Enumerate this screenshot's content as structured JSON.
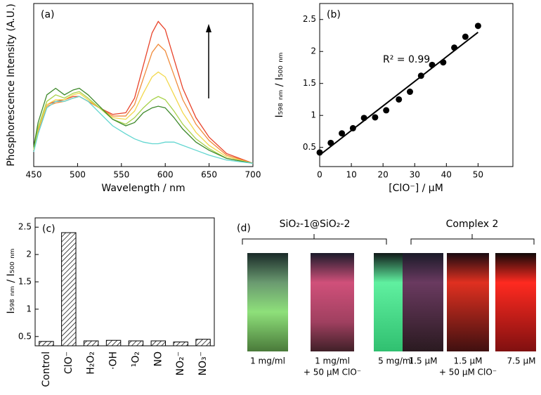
{
  "chart_data": [
    {
      "type": "line",
      "panel_label": "(a)",
      "x_label": "Wavelength / nm",
      "y_label": "Phosphorescence Intensity (A.U.)",
      "x": [
        450,
        455,
        465,
        475,
        485,
        495,
        502,
        512,
        525,
        540,
        555,
        565,
        575,
        585,
        592,
        600,
        610,
        620,
        635,
        650,
        670,
        700
      ],
      "xlim": [
        450,
        700
      ],
      "xticks": [
        450,
        500,
        550,
        600,
        650,
        700
      ],
      "ylim": [
        0,
        1
      ],
      "series": [
        {
          "color": "#e8432a",
          "values": [
            0.1,
            0.22,
            0.38,
            0.4,
            0.41,
            0.43,
            0.43,
            0.4,
            0.36,
            0.32,
            0.33,
            0.42,
            0.62,
            0.82,
            0.89,
            0.84,
            0.66,
            0.48,
            0.3,
            0.18,
            0.08,
            0.02
          ]
        },
        {
          "color": "#f08c3c",
          "values": [
            0.1,
            0.22,
            0.37,
            0.39,
            0.4,
            0.42,
            0.43,
            0.4,
            0.36,
            0.31,
            0.31,
            0.38,
            0.54,
            0.7,
            0.75,
            0.71,
            0.56,
            0.41,
            0.26,
            0.16,
            0.07,
            0.02
          ]
        },
        {
          "color": "#f2d84c",
          "values": [
            0.1,
            0.23,
            0.38,
            0.41,
            0.41,
            0.44,
            0.45,
            0.41,
            0.36,
            0.3,
            0.29,
            0.34,
            0.45,
            0.55,
            0.58,
            0.55,
            0.44,
            0.33,
            0.21,
            0.13,
            0.06,
            0.02
          ]
        },
        {
          "color": "#a8d24a",
          "values": [
            0.11,
            0.24,
            0.4,
            0.44,
            0.42,
            0.45,
            0.46,
            0.42,
            0.36,
            0.29,
            0.26,
            0.3,
            0.36,
            0.41,
            0.43,
            0.41,
            0.34,
            0.26,
            0.17,
            0.11,
            0.05,
            0.02
          ]
        },
        {
          "color": "#3f8a2c",
          "values": [
            0.12,
            0.27,
            0.44,
            0.48,
            0.44,
            0.47,
            0.48,
            0.44,
            0.37,
            0.29,
            0.25,
            0.27,
            0.33,
            0.36,
            0.37,
            0.36,
            0.3,
            0.23,
            0.15,
            0.1,
            0.05,
            0.02
          ]
        },
        {
          "color": "#62d6d0",
          "values": [
            0.09,
            0.2,
            0.36,
            0.4,
            0.4,
            0.42,
            0.43,
            0.4,
            0.33,
            0.25,
            0.2,
            0.17,
            0.15,
            0.14,
            0.14,
            0.15,
            0.15,
            0.13,
            0.1,
            0.07,
            0.04,
            0.02
          ]
        }
      ]
    },
    {
      "type": "scatter",
      "panel_label": "(b)",
      "x_label": "[ClO⁻] / μM",
      "y_label": "I₅₉₈ ₙₘ / I₅₀₀ ₙₘ",
      "annotation": "R² = 0.99",
      "x": [
        0,
        3.5,
        7,
        10.5,
        14,
        17.5,
        21,
        25,
        28.5,
        32,
        35.5,
        39,
        42.5,
        46,
        50
      ],
      "values": [
        0.42,
        0.57,
        0.72,
        0.8,
        0.96,
        0.97,
        1.08,
        1.25,
        1.37,
        1.62,
        1.79,
        1.83,
        2.06,
        2.23,
        2.4
      ],
      "fit": {
        "x": [
          0,
          50
        ],
        "y": [
          0.38,
          2.3
        ]
      },
      "color": "#000000",
      "xlim": [
        0,
        61
      ],
      "xticks": [
        0,
        10,
        20,
        30,
        40,
        50
      ],
      "ylim": [
        0.2,
        2.75
      ],
      "yticks": [
        0.5,
        1.0,
        1.5,
        2.0,
        2.5
      ]
    },
    {
      "type": "bar",
      "panel_label": "(c)",
      "y_label": "I₅₉₈ ₙₘ / I₅₀₀ ₙₘ",
      "categories": [
        "Control",
        "ClO⁻",
        "H₂O₂",
        "·OH",
        "¹O₂",
        "NO",
        "NO₂⁻",
        "NO₃⁻"
      ],
      "values": [
        0.41,
        2.4,
        0.42,
        0.43,
        0.42,
        0.42,
        0.4,
        0.45
      ],
      "ylim": [
        0.33,
        2.67
      ],
      "yticks": [
        0.5,
        1.0,
        1.5,
        2.0,
        2.5
      ]
    }
  ],
  "panel_d": {
    "label": "(d)",
    "groups": [
      "SiO₂-1@SiO₂-2",
      "Complex 2"
    ],
    "captions": [
      [
        "1 mg/ml"
      ],
      [
        "1 mg/ml",
        "+ 50 μM ClO⁻"
      ],
      [
        "5 mg/ml"
      ],
      [
        "1.5 μM"
      ],
      [
        "1.5 μM",
        "+ 50 μM ClO⁻"
      ],
      [
        "7.5 μM"
      ]
    ]
  }
}
